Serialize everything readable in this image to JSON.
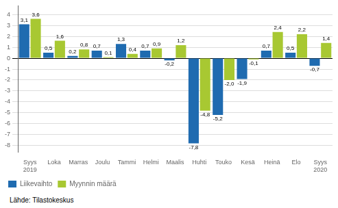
{
  "chart_data": {
    "type": "bar",
    "categories": [
      "Syys\n2019",
      "Loka",
      "Marras",
      "Joulu",
      "Tammi",
      "Helmi",
      "Maalis",
      "Huhti",
      "Touko",
      "Kesä",
      "Heinä",
      "Elo",
      "Syys\n2020"
    ],
    "series": [
      {
        "name": "Liikevaihto",
        "color": "#1F6BB0",
        "values": [
          3.1,
          0.5,
          0.2,
          0.7,
          1.3,
          0.7,
          -0.2,
          -7.8,
          -5.2,
          -1.9,
          0.7,
          0.5,
          -0.7
        ],
        "value_labels": [
          "3,1",
          "0,5",
          "0,2",
          "0,7",
          "1,3",
          "0,7",
          "-0,2",
          "-7,8",
          "-5,2",
          "-1,9",
          "0,7",
          "0,5",
          "-0,7"
        ]
      },
      {
        "name": "Myynnin määrä",
        "color": "#A8C832",
        "values": [
          3.6,
          1.6,
          0.8,
          0.1,
          0.4,
          0.9,
          1.2,
          -4.8,
          -2.0,
          -0.1,
          2.4,
          2.2,
          1.4
        ],
        "value_labels": [
          "3,6",
          "1,6",
          "0,8",
          "0,1",
          "0,4",
          "0,9",
          "1,2",
          "-4,8",
          "-2,0",
          "-0,1",
          "2,4",
          "2,2",
          "1,4"
        ]
      }
    ],
    "ylim": [
      -8.6,
      4.8
    ],
    "yticks": [
      -8,
      -7,
      -6,
      -5,
      -4,
      -3,
      -2,
      -1,
      0,
      1,
      2,
      3,
      4
    ],
    "grid": true,
    "legend": "lower left",
    "data_labels": true,
    "annotations": [
      "Lähde: Tilastokeskus"
    ]
  }
}
